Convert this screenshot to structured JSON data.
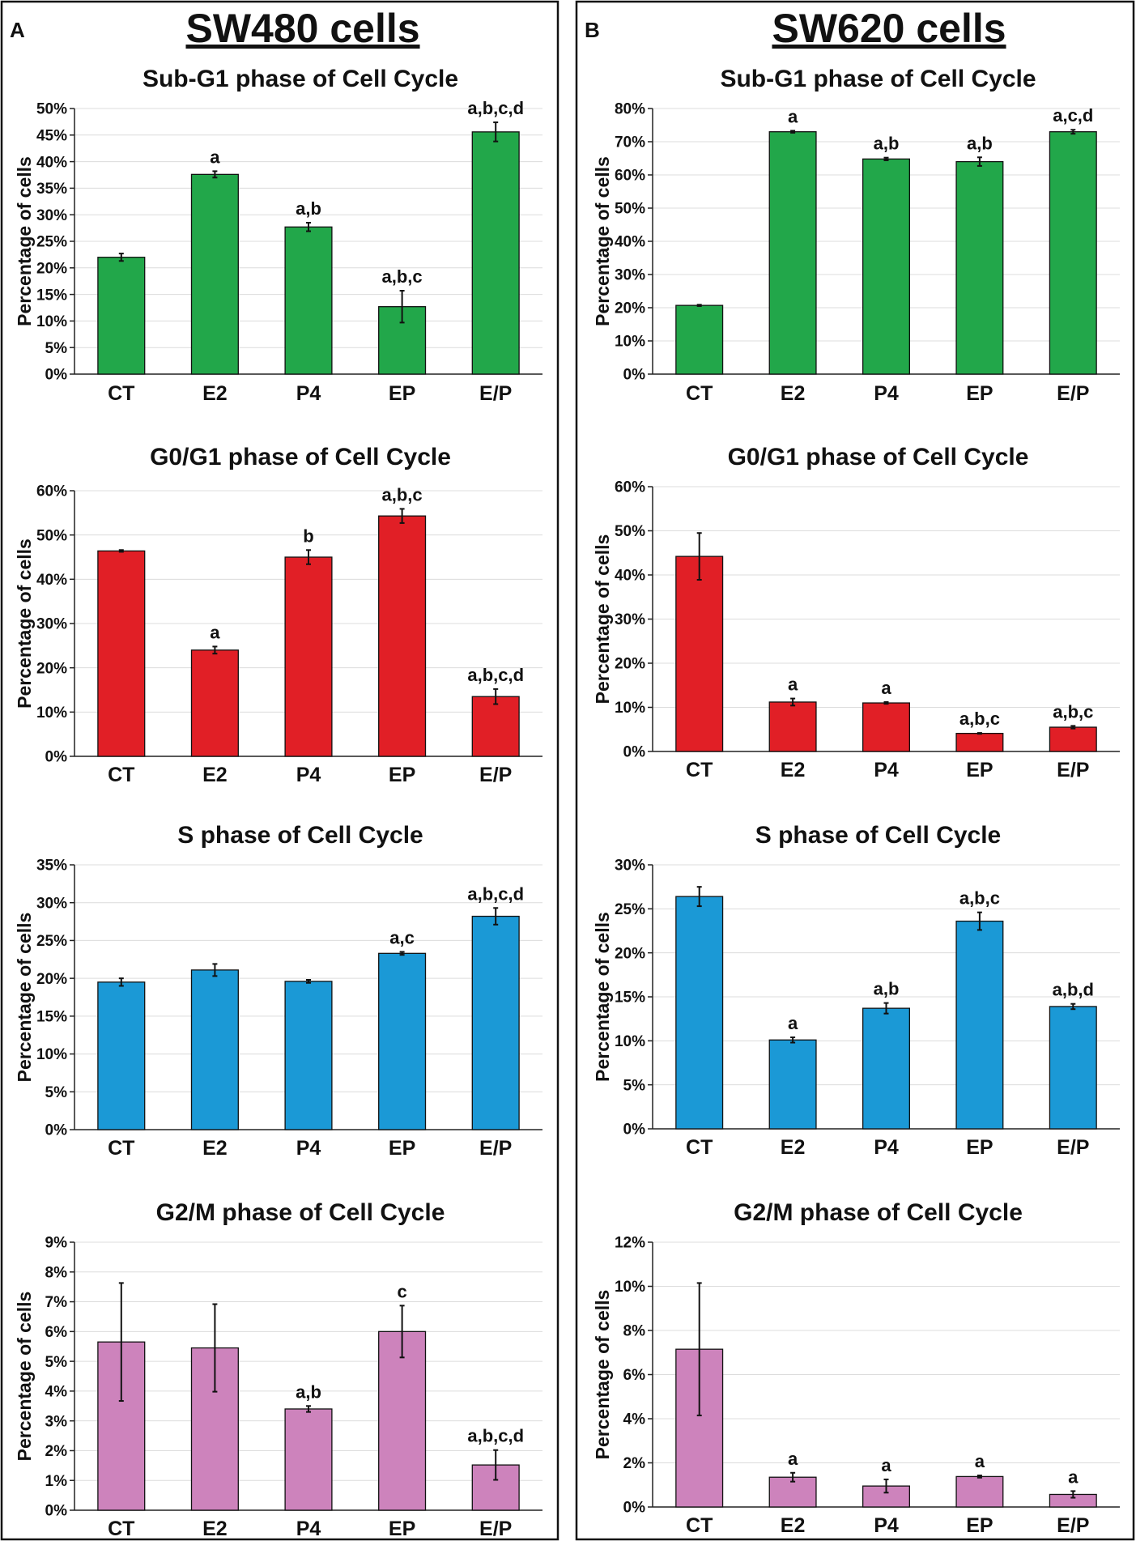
{
  "figure": {
    "colors": {
      "subg1": "#22a74a",
      "g0g1": "#e11f26",
      "s": "#1b99d6",
      "g2m": "#cd83bc",
      "grid": "#dcdcdc",
      "axis": "#222222"
    },
    "panels": [
      {
        "letter": "A",
        "heading": "SW480 cells"
      },
      {
        "letter": "B",
        "heading": "SW620 cells"
      }
    ]
  },
  "chart_data": [
    {
      "panel": "A",
      "type": "bar",
      "title": "Sub-G1 phase of Cell Cycle",
      "ylabel": "Percentage of cells",
      "xlabel": "",
      "categories": [
        "CT",
        "E2",
        "P4",
        "EP",
        "E/P"
      ],
      "values": [
        22.0,
        37.6,
        27.7,
        12.7,
        45.6
      ],
      "errors": [
        0.7,
        0.6,
        0.8,
        3.0,
        1.8
      ],
      "sig": [
        "",
        "a",
        "a,b",
        "a,b,c",
        "a,b,c,d"
      ],
      "ylim": [
        0,
        50
      ],
      "ticks": [
        "0%",
        "5%",
        "10%",
        "15%",
        "20%",
        "25%",
        "30%",
        "35%",
        "40%",
        "45%",
        "50%"
      ],
      "colorKey": "subg1"
    },
    {
      "panel": "A",
      "type": "bar",
      "title": "G0/G1 phase of Cell Cycle",
      "ylabel": "Percentage of cells",
      "xlabel": "",
      "categories": [
        "CT",
        "E2",
        "P4",
        "EP",
        "E/P"
      ],
      "values": [
        46.4,
        24.0,
        45.0,
        54.3,
        13.5
      ],
      "errors": [
        0.2,
        0.8,
        1.6,
        1.6,
        1.7
      ],
      "sig": [
        "",
        "a",
        "b",
        "a,b,c",
        "a,b,c,d"
      ],
      "ylim": [
        0,
        60
      ],
      "ticks": [
        "0%",
        "10%",
        "20%",
        "30%",
        "40%",
        "50%",
        "60%"
      ],
      "colorKey": "g0g1"
    },
    {
      "panel": "A",
      "type": "bar",
      "title": "S phase of Cell Cycle",
      "ylabel": "Percentage of cells",
      "xlabel": "",
      "categories": [
        "CT",
        "E2",
        "P4",
        "EP",
        "E/P"
      ],
      "values": [
        19.5,
        21.1,
        19.6,
        23.3,
        28.2
      ],
      "errors": [
        0.5,
        0.8,
        0.2,
        0.2,
        1.1
      ],
      "sig": [
        "",
        "",
        "",
        "a,c",
        "a,b,c,d"
      ],
      "ylim": [
        0,
        35
      ],
      "ticks": [
        "0%",
        "5%",
        "10%",
        "15%",
        "20%",
        "25%",
        "30%",
        "35%"
      ],
      "colorKey": "s"
    },
    {
      "panel": "A",
      "type": "bar",
      "title": "G2/M phase of Cell Cycle",
      "ylabel": "Percentage of cells",
      "xlabel": "",
      "categories": [
        "CT",
        "E2",
        "P4",
        "EP",
        "E/P"
      ],
      "values": [
        5.65,
        5.45,
        3.4,
        6.0,
        1.52
      ],
      "errors": [
        1.98,
        1.47,
        0.1,
        0.87,
        0.5
      ],
      "sig": [
        "",
        "",
        "a,b",
        "c",
        "a,b,c,d"
      ],
      "ylim": [
        0,
        9
      ],
      "ticks": [
        "0%",
        "1%",
        "2%",
        "3%",
        "4%",
        "5%",
        "6%",
        "7%",
        "8%",
        "9%"
      ],
      "colorKey": "g2m"
    },
    {
      "panel": "B",
      "type": "bar",
      "title": "Sub-G1 phase of Cell Cycle",
      "ylabel": "Percentage of cells",
      "xlabel": "",
      "categories": [
        "CT",
        "E2",
        "P4",
        "EP",
        "E/P"
      ],
      "values": [
        20.7,
        73.0,
        64.8,
        64.0,
        73.0
      ],
      "errors": [
        0.2,
        0.3,
        0.4,
        1.3,
        0.6
      ],
      "sig": [
        "",
        "a",
        "a,b",
        "a,b",
        "a,c,d"
      ],
      "ylim": [
        0,
        80
      ],
      "ticks": [
        "0%",
        "10%",
        "20%",
        "30%",
        "40%",
        "50%",
        "60%",
        "70%",
        "80%"
      ],
      "colorKey": "subg1"
    },
    {
      "panel": "B",
      "type": "bar",
      "title": "G0/G1 phase of Cell Cycle",
      "ylabel": "Percentage of cells",
      "xlabel": "",
      "categories": [
        "CT",
        "E2",
        "P4",
        "EP",
        "E/P"
      ],
      "values": [
        44.2,
        11.2,
        11.0,
        4.1,
        5.5
      ],
      "errors": [
        5.3,
        0.8,
        0.2,
        0.1,
        0.3
      ],
      "sig": [
        "",
        "a",
        "a",
        "a,b,c",
        "a,b,c"
      ],
      "ylim": [
        0,
        60
      ],
      "ticks": [
        "0%",
        "10%",
        "20%",
        "30%",
        "40%",
        "50%",
        "60%"
      ],
      "colorKey": "g0g1"
    },
    {
      "panel": "B",
      "type": "bar",
      "title": "S phase of Cell Cycle",
      "ylabel": "Percentage of cells",
      "xlabel": "",
      "categories": [
        "CT",
        "E2",
        "P4",
        "EP",
        "E/P"
      ],
      "values": [
        26.4,
        10.1,
        13.7,
        23.6,
        13.9
      ],
      "errors": [
        1.1,
        0.3,
        0.6,
        1.0,
        0.3
      ],
      "sig": [
        "",
        "a",
        "a,b",
        "a,b,c",
        "a,b,d"
      ],
      "ylim": [
        0,
        30
      ],
      "ticks": [
        "0%",
        "5%",
        "10%",
        "15%",
        "20%",
        "25%",
        "30%"
      ],
      "colorKey": "s"
    },
    {
      "panel": "B",
      "type": "bar",
      "title": "G2/M phase of Cell Cycle",
      "ylabel": "Percentage of cells",
      "xlabel": "",
      "categories": [
        "CT",
        "E2",
        "P4",
        "EP",
        "E/P"
      ],
      "values": [
        7.15,
        1.35,
        0.95,
        1.38,
        0.57
      ],
      "errors": [
        3.0,
        0.2,
        0.3,
        0.05,
        0.15
      ],
      "sig": [
        "",
        "a",
        "a",
        "a",
        "a"
      ],
      "ylim": [
        0,
        12
      ],
      "ticks": [
        "0%",
        "2%",
        "4%",
        "6%",
        "8%",
        "10%",
        "12%"
      ],
      "colorKey": "g2m"
    }
  ]
}
